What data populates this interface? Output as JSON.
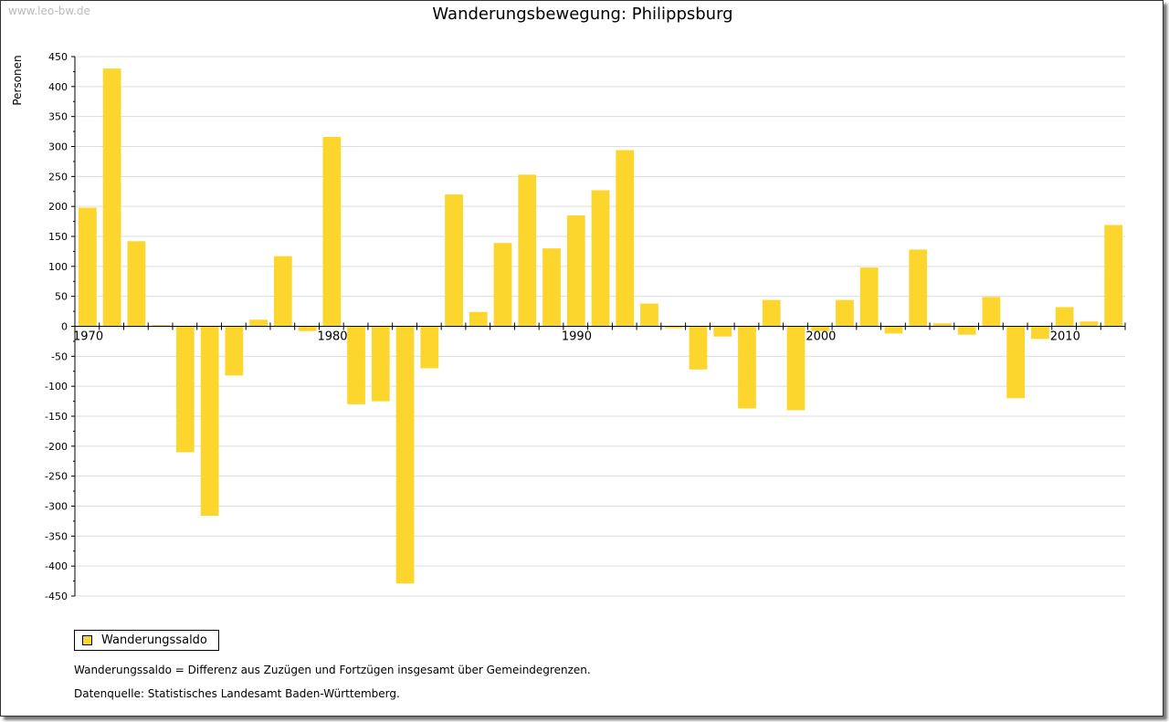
{
  "watermark": "www.leo-bw.de",
  "chart_data": {
    "type": "bar",
    "title": "Wanderungsbewegung: Philippsburg",
    "ylabel": "Personen",
    "xlabel": "",
    "ylim": [
      -450,
      450
    ],
    "yticks_step": 50,
    "x_tick_labels": [
      "1970",
      "1980",
      "1990",
      "2000",
      "2010"
    ],
    "categories": [
      1970,
      1971,
      1972,
      1973,
      1974,
      1975,
      1976,
      1977,
      1978,
      1979,
      1980,
      1981,
      1982,
      1983,
      1984,
      1985,
      1986,
      1987,
      1988,
      1989,
      1990,
      1991,
      1992,
      1993,
      1994,
      1995,
      1996,
      1997,
      1998,
      1999,
      2000,
      2001,
      2002,
      2003,
      2004,
      2005,
      2006,
      2007,
      2008,
      2009,
      2010,
      2011,
      2012
    ],
    "series": [
      {
        "name": "Wanderungssaldo",
        "color": "#fcd52d",
        "values": [
          198,
          430,
          142,
          2,
          -210,
          -316,
          -82,
          11,
          117,
          -8,
          316,
          -130,
          -125,
          -429,
          -70,
          220,
          24,
          139,
          253,
          130,
          185,
          227,
          294,
          38,
          -3,
          -72,
          -17,
          -137,
          44,
          -140,
          -8,
          44,
          98,
          -12,
          128,
          5,
          -14,
          49,
          -120,
          -21,
          32,
          8,
          169
        ]
      }
    ],
    "grid": true,
    "legend": "bottom-left"
  },
  "notes": [
    "Wanderungssaldo = Differenz aus Zuzügen und Fortzügen insgesamt über Gemeindegrenzen.",
    "Datenquelle: Statistisches Landesamt Baden-Württemberg."
  ]
}
